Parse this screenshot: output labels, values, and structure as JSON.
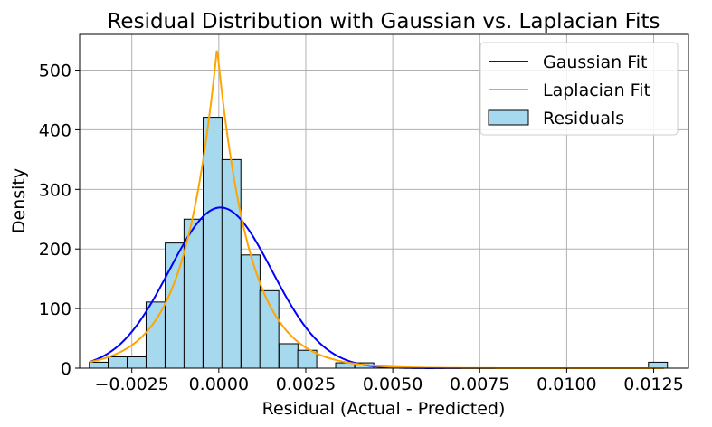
{
  "chart_data": {
    "type": "bar",
    "title": "Residual Distribution with Gaussian vs. Laplacian Fits",
    "xlabel": "Residual (Actual - Predicted)",
    "ylabel": "Density",
    "xlim": [
      -0.004,
      0.0135
    ],
    "ylim": [
      0,
      560
    ],
    "grid": true,
    "legend_position": "top-right",
    "x_ticks": [
      -0.0025,
      0.0,
      0.0025,
      0.005,
      0.0075,
      0.01,
      0.0125
    ],
    "x_tick_labels": [
      "−0.0025",
      "0.0000",
      "0.0025",
      "0.0050",
      "0.0075",
      "0.0100",
      "0.0125"
    ],
    "y_ticks": [
      0,
      100,
      200,
      300,
      400,
      500
    ],
    "y_tick_labels": [
      "0",
      "100",
      "200",
      "300",
      "400",
      "500"
    ],
    "histogram": {
      "name": "Residuals",
      "color": "#a6d8ee",
      "edge_color": "#000000",
      "bin_width": 0.000545,
      "bins": [
        {
          "left": -0.00372,
          "height": 10
        },
        {
          "left": -0.00318,
          "height": 19
        },
        {
          "left": -0.00263,
          "height": 19
        },
        {
          "left": -0.00209,
          "height": 111
        },
        {
          "left": -0.00154,
          "height": 210
        },
        {
          "left": -0.001,
          "height": 250
        },
        {
          "left": -0.00045,
          "height": 421
        },
        {
          "left": 9e-05,
          "height": 350
        },
        {
          "left": 0.00064,
          "height": 190
        },
        {
          "left": 0.00118,
          "height": 130
        },
        {
          "left": 0.00173,
          "height": 41
        },
        {
          "left": 0.00227,
          "height": 30
        },
        {
          "left": 0.00282,
          "height": 0
        },
        {
          "left": 0.00336,
          "height": 9
        },
        {
          "left": 0.00391,
          "height": 9
        },
        {
          "left": 0.01235,
          "height": 10
        }
      ]
    },
    "series": [
      {
        "name": "Gaussian Fit",
        "kind": "gaussian",
        "color": "#0000ff",
        "mu": 5e-05,
        "sigma": 0.00148,
        "x_range": [
          -0.00372,
          0.0128
        ]
      },
      {
        "name": "Laplacian Fit",
        "kind": "laplacian",
        "color": "#ffa500",
        "mu": -5e-05,
        "b": 0.00093,
        "x_range": [
          -0.00372,
          0.0128
        ]
      }
    ]
  }
}
